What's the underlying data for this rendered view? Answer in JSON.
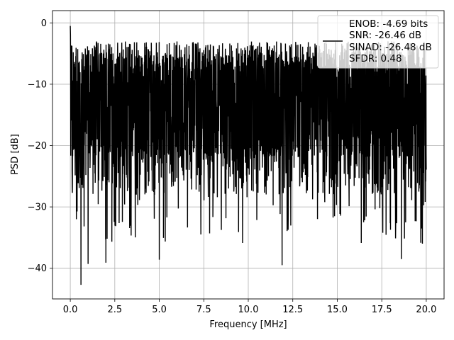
{
  "chart_data": {
    "type": "line",
    "xlabel": "Frequency [MHz]",
    "ylabel": "PSD [dB]",
    "xlim": [
      -1.0,
      21.0
    ],
    "ylim": [
      -45,
      2
    ],
    "xticks": [
      0.0,
      2.5,
      5.0,
      7.5,
      10.0,
      12.5,
      15.0,
      17.5,
      20.0
    ],
    "xtick_labels": [
      "0.0",
      "2.5",
      "5.0",
      "7.5",
      "10.0",
      "12.5",
      "15.0",
      "17.5",
      "20.0"
    ],
    "yticks": [
      0,
      -10,
      -20,
      -30,
      -40
    ],
    "ytick_labels": [
      "0",
      "−10",
      "−20",
      "−30",
      "−40"
    ],
    "grid": true,
    "legend_position": "top-right",
    "legend_lines": [
      "ENOB: -4.69 bits",
      "SNR: -26.46 dB",
      "SINAD: -26.48 dB",
      "SFDR: 0.48"
    ],
    "series_color": "#000000",
    "series": [
      {
        "x_range": [
          0.0,
          20.0
        ],
        "y_peak": -0.5,
        "y_min": -42.7,
        "noise_band_top": -5,
        "noise_band_bottom": -22,
        "notable_minima": [
          {
            "x": 0.6,
            "y": -42.7
          },
          {
            "x": 1.0,
            "y": -39.3
          },
          {
            "x": 2.0,
            "y": -39.1
          },
          {
            "x": 5.0,
            "y": -38.6
          },
          {
            "x": 11.9,
            "y": -39.5
          },
          {
            "x": 18.6,
            "y": -38.5
          }
        ]
      }
    ]
  }
}
